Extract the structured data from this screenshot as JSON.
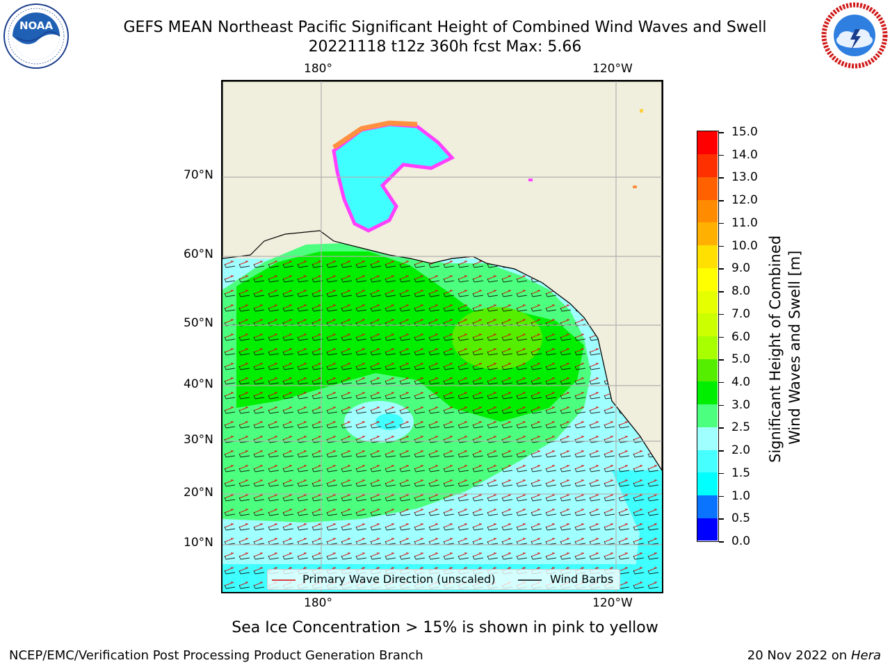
{
  "header": {
    "title_line1": "GEFS MEAN Northeast Pacific Significant Height of Combined Wind Waves and Swell",
    "title_line2": "20221118 t12z 360h fcst   Max: 5.66"
  },
  "logos": {
    "left": {
      "text": "NOAA",
      "ring_text": "NATIONAL OCEANIC AND ATMOSPHERIC ADMINISTRATION · U.S. DEPARTMENT OF COMMERCE"
    },
    "right": {
      "ring_text": "NATIONAL WEATHER SERVICE"
    }
  },
  "map": {
    "lon_labels": [
      "180°",
      "120°W"
    ],
    "lat_labels": [
      "70°N",
      "60°N",
      "50°N",
      "40°N",
      "30°N",
      "20°N",
      "10°N"
    ],
    "legend": {
      "wave_dir": "Primary Wave Direction (unscaled)",
      "wind_barbs": "Wind Barbs"
    },
    "colors": {
      "land": "#f0eedc",
      "wave_arrow": "#e00000",
      "barb": "#000000",
      "grid": "#b0b0b0"
    }
  },
  "colorbar": {
    "ticks": [
      "0.0",
      "0.5",
      "1.0",
      "1.5",
      "2.0",
      "2.5",
      "3.0",
      "4.0",
      "5.0",
      "6.0",
      "7.0",
      "8.0",
      "9.0",
      "10.0",
      "11.0",
      "12.0",
      "13.0",
      "14.0",
      "15.0"
    ],
    "colors": [
      "#0000ff",
      "#0a74ff",
      "#00ffff",
      "#46ffff",
      "#a0ffff",
      "#4dff7f",
      "#00ee00",
      "#55ee00",
      "#a8ff00",
      "#ccff00",
      "#e6ff00",
      "#ffff00",
      "#ffe000",
      "#ffb000",
      "#ff8c00",
      "#ff6000",
      "#ff3000",
      "#ff0000"
    ],
    "label_line1": "Significant Height of Combined",
    "label_line2": "Wind Waves and Swell [m]"
  },
  "footer": {
    "note": "Sea Ice Concentration > 15% is shown in pink to yellow",
    "credit": "NCEP/EMC/Verification Post Processing Product Generation Branch",
    "date": "20 Nov 2022 on",
    "machine": "Hera"
  }
}
